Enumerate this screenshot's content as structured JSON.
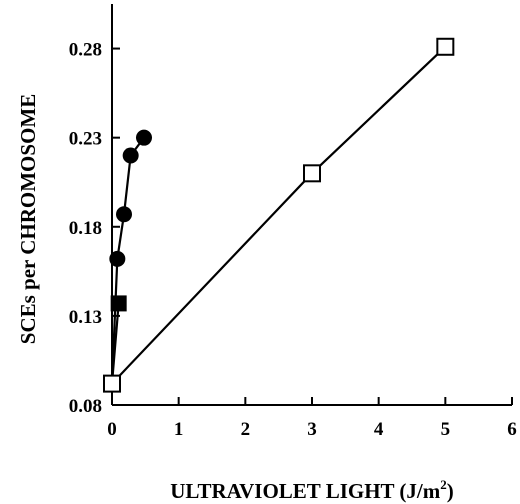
{
  "chart_data": {
    "type": "line",
    "xlabel": "ULTRAVIOLET LIGHT (J/m",
    "xlabel_sup": "2",
    "xlabel_suffix": ")",
    "ylabel": "SCEs  per CHROMOSOME",
    "xlim": [
      0,
      6
    ],
    "ylim": [
      0.08,
      0.305
    ],
    "x_ticks": [
      0,
      1,
      2,
      3,
      4,
      5,
      6
    ],
    "y_ticks": [
      0.08,
      0.13,
      0.18,
      0.23,
      0.28
    ],
    "x_tick_labels": [
      "0",
      "1",
      "2",
      "3",
      "4",
      "5",
      "6"
    ],
    "y_tick_labels": [
      "0.08",
      "0.13",
      "0.18",
      "0.23",
      "0.28"
    ],
    "grid": false,
    "series": [
      {
        "marker": "filled-circle",
        "x": [
          0.0,
          0.08,
          0.18,
          0.28,
          0.48
        ],
        "y": [
          0.092,
          0.162,
          0.187,
          0.22,
          0.23
        ]
      },
      {
        "marker": "filled-square",
        "x": [
          0.0,
          0.1
        ],
        "y": [
          0.092,
          0.137
        ]
      },
      {
        "marker": "open-square",
        "x": [
          0.0,
          3.0,
          5.0
        ],
        "y": [
          0.092,
          0.21,
          0.281
        ]
      }
    ]
  }
}
